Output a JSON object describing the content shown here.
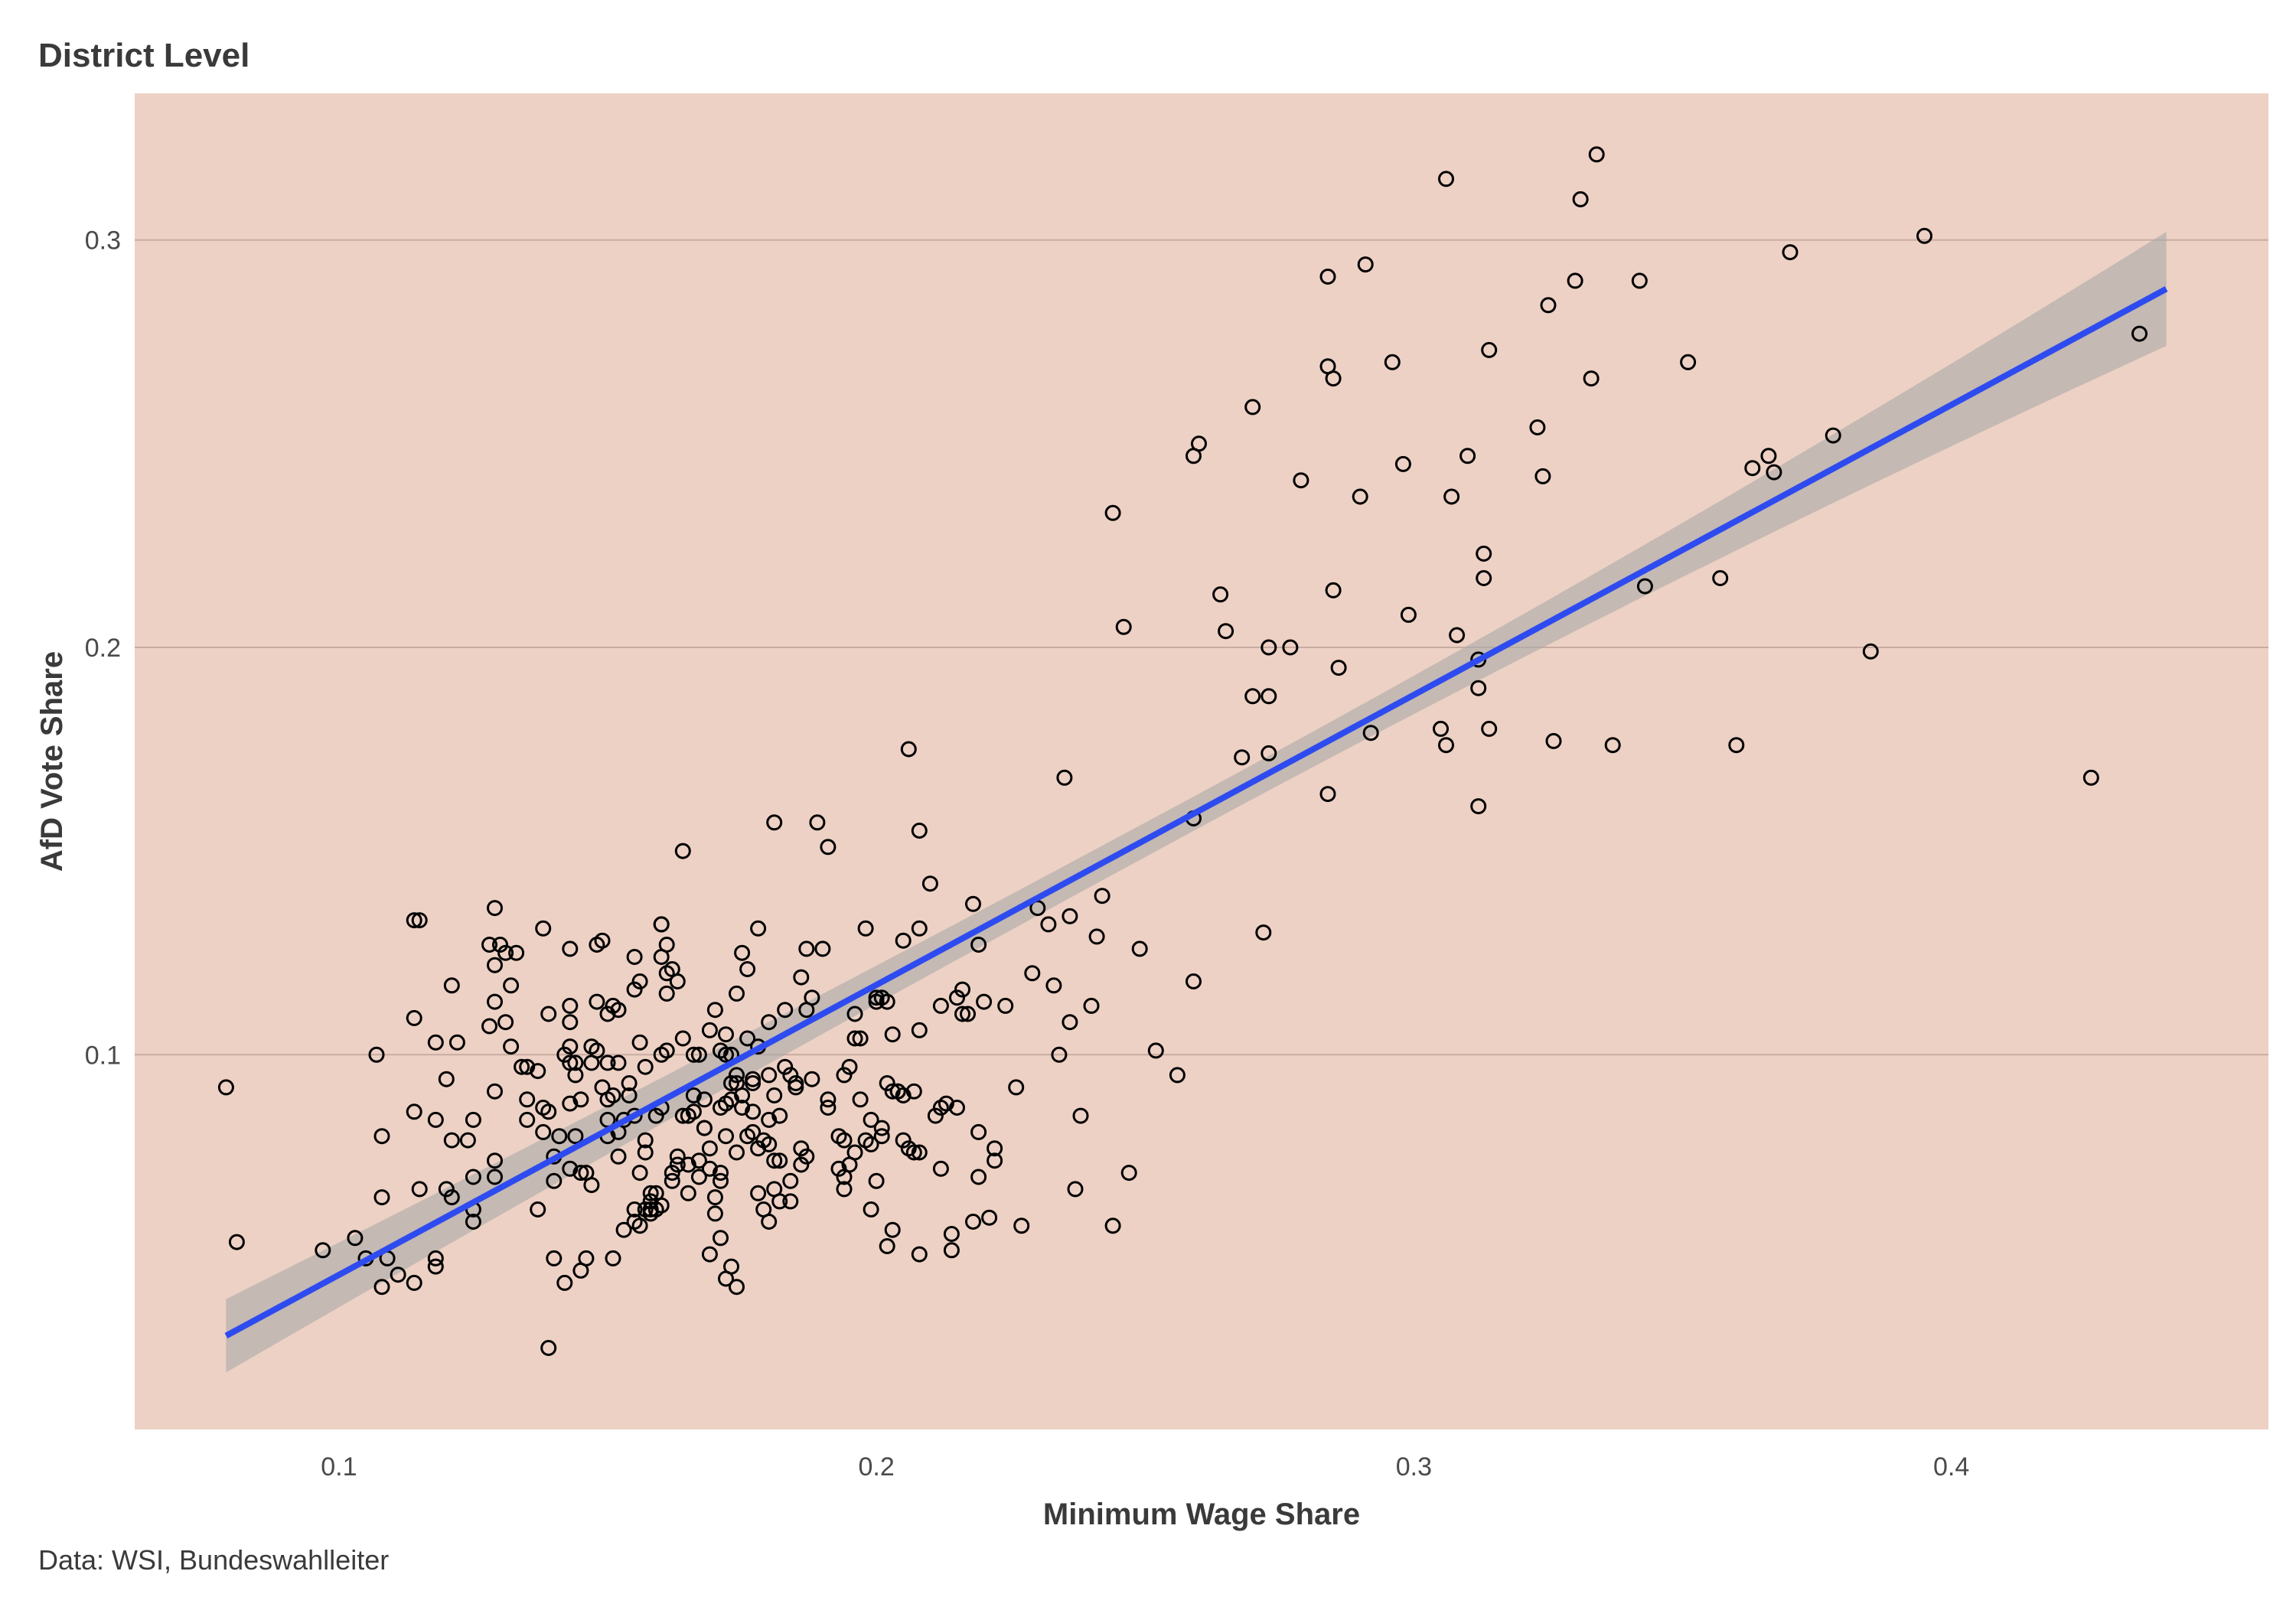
{
  "chart_data": {
    "type": "scatter",
    "title": "District Level",
    "caption": "Data: WSI, Bundeswahlleiter",
    "xlabel": "Minimum Wage Share",
    "ylabel": "AfD Vote Share",
    "xlim": [
      0.062,
      0.459
    ],
    "ylim": [
      0.008,
      0.336
    ],
    "xticks": [
      {
        "v": 0.1,
        "label": "0.1"
      },
      {
        "v": 0.2,
        "label": "0.2"
      },
      {
        "v": 0.3,
        "label": "0.3"
      },
      {
        "v": 0.4,
        "label": "0.4"
      }
    ],
    "yticks": [
      {
        "v": 0.1,
        "label": "0.1"
      },
      {
        "v": 0.2,
        "label": "0.2"
      },
      {
        "v": 0.3,
        "label": "0.3"
      }
    ],
    "grid": "horizontal",
    "panel_color": "#edd1c4",
    "point_color": "#000000",
    "fit": {
      "method": "linear",
      "color": "#2e4bf0",
      "band_color": "#a8a8a8",
      "x_start": 0.079,
      "x_end": 0.44,
      "y_start": 0.031,
      "y_end": 0.288,
      "band_start": 0.009,
      "band_end": 0.014
    },
    "points": [
      [
        0.079,
        0.092
      ],
      [
        0.081,
        0.054
      ],
      [
        0.097,
        0.052
      ],
      [
        0.103,
        0.055
      ],
      [
        0.105,
        0.05
      ],
      [
        0.107,
        0.1
      ],
      [
        0.108,
        0.043
      ],
      [
        0.108,
        0.065
      ],
      [
        0.108,
        0.08
      ],
      [
        0.109,
        0.05
      ],
      [
        0.111,
        0.046
      ],
      [
        0.114,
        0.044
      ],
      [
        0.114,
        0.086
      ],
      [
        0.114,
        0.109
      ],
      [
        0.114,
        0.133
      ],
      [
        0.115,
        0.133
      ],
      [
        0.115,
        0.067
      ],
      [
        0.118,
        0.103
      ],
      [
        0.118,
        0.084
      ],
      [
        0.118,
        0.048
      ],
      [
        0.118,
        0.05
      ],
      [
        0.12,
        0.094
      ],
      [
        0.12,
        0.067
      ],
      [
        0.121,
        0.079
      ],
      [
        0.121,
        0.065
      ],
      [
        0.121,
        0.117
      ],
      [
        0.122,
        0.103
      ],
      [
        0.124,
        0.079
      ],
      [
        0.125,
        0.084
      ],
      [
        0.125,
        0.062
      ],
      [
        0.125,
        0.07
      ],
      [
        0.125,
        0.059
      ],
      [
        0.128,
        0.107
      ],
      [
        0.128,
        0.127
      ],
      [
        0.129,
        0.07
      ],
      [
        0.129,
        0.074
      ],
      [
        0.129,
        0.091
      ],
      [
        0.129,
        0.113
      ],
      [
        0.129,
        0.122
      ],
      [
        0.129,
        0.136
      ],
      [
        0.13,
        0.127
      ],
      [
        0.131,
        0.125
      ],
      [
        0.131,
        0.108
      ],
      [
        0.132,
        0.102
      ],
      [
        0.132,
        0.117
      ],
      [
        0.133,
        0.125
      ],
      [
        0.134,
        0.097
      ],
      [
        0.135,
        0.084
      ],
      [
        0.135,
        0.097
      ],
      [
        0.135,
        0.089
      ],
      [
        0.137,
        0.062
      ],
      [
        0.137,
        0.096
      ],
      [
        0.138,
        0.087
      ],
      [
        0.138,
        0.081
      ],
      [
        0.138,
        0.131
      ],
      [
        0.139,
        0.028
      ],
      [
        0.139,
        0.086
      ],
      [
        0.139,
        0.11
      ],
      [
        0.14,
        0.05
      ],
      [
        0.14,
        0.075
      ],
      [
        0.14,
        0.069
      ],
      [
        0.141,
        0.08
      ],
      [
        0.142,
        0.044
      ],
      [
        0.142,
        0.1
      ],
      [
        0.143,
        0.102
      ],
      [
        0.143,
        0.112
      ],
      [
        0.143,
        0.072
      ],
      [
        0.143,
        0.088
      ],
      [
        0.143,
        0.126
      ],
      [
        0.143,
        0.098
      ],
      [
        0.143,
        0.108
      ],
      [
        0.144,
        0.098
      ],
      [
        0.144,
        0.095
      ],
      [
        0.144,
        0.08
      ],
      [
        0.145,
        0.089
      ],
      [
        0.145,
        0.047
      ],
      [
        0.145,
        0.071
      ],
      [
        0.146,
        0.071
      ],
      [
        0.146,
        0.05
      ],
      [
        0.147,
        0.068
      ],
      [
        0.147,
        0.102
      ],
      [
        0.147,
        0.098
      ],
      [
        0.148,
        0.113
      ],
      [
        0.148,
        0.101
      ],
      [
        0.148,
        0.127
      ],
      [
        0.149,
        0.128
      ],
      [
        0.149,
        0.092
      ],
      [
        0.15,
        0.11
      ],
      [
        0.15,
        0.098
      ],
      [
        0.15,
        0.08
      ],
      [
        0.15,
        0.084
      ],
      [
        0.15,
        0.089
      ],
      [
        0.151,
        0.05
      ],
      [
        0.151,
        0.09
      ],
      [
        0.151,
        0.112
      ],
      [
        0.152,
        0.098
      ],
      [
        0.152,
        0.075
      ],
      [
        0.152,
        0.081
      ],
      [
        0.152,
        0.111
      ],
      [
        0.153,
        0.084
      ],
      [
        0.153,
        0.057
      ],
      [
        0.154,
        0.093
      ],
      [
        0.154,
        0.09
      ],
      [
        0.155,
        0.085
      ],
      [
        0.155,
        0.124
      ],
      [
        0.155,
        0.116
      ],
      [
        0.155,
        0.062
      ],
      [
        0.155,
        0.059
      ],
      [
        0.156,
        0.058
      ],
      [
        0.156,
        0.071
      ],
      [
        0.156,
        0.103
      ],
      [
        0.156,
        0.118
      ],
      [
        0.157,
        0.076
      ],
      [
        0.157,
        0.097
      ],
      [
        0.157,
        0.062
      ],
      [
        0.157,
        0.079
      ],
      [
        0.158,
        0.064
      ],
      [
        0.158,
        0.066
      ],
      [
        0.158,
        0.061
      ],
      [
        0.158,
        0.062
      ],
      [
        0.159,
        0.085
      ],
      [
        0.159,
        0.066
      ],
      [
        0.159,
        0.062
      ],
      [
        0.16,
        0.1
      ],
      [
        0.16,
        0.063
      ],
      [
        0.16,
        0.132
      ],
      [
        0.16,
        0.132
      ],
      [
        0.16,
        0.124
      ],
      [
        0.16,
        0.087
      ],
      [
        0.161,
        0.127
      ],
      [
        0.161,
        0.12
      ],
      [
        0.161,
        0.101
      ],
      [
        0.161,
        0.115
      ],
      [
        0.162,
        0.069
      ],
      [
        0.162,
        0.071
      ],
      [
        0.162,
        0.121
      ],
      [
        0.163,
        0.118
      ],
      [
        0.163,
        0.075
      ],
      [
        0.163,
        0.073
      ],
      [
        0.164,
        0.15
      ],
      [
        0.164,
        0.085
      ],
      [
        0.164,
        0.104
      ],
      [
        0.165,
        0.073
      ],
      [
        0.165,
        0.066
      ],
      [
        0.165,
        0.085
      ],
      [
        0.166,
        0.1
      ],
      [
        0.166,
        0.086
      ],
      [
        0.166,
        0.09
      ],
      [
        0.167,
        0.1
      ],
      [
        0.167,
        0.07
      ],
      [
        0.167,
        0.074
      ],
      [
        0.168,
        0.082
      ],
      [
        0.168,
        0.089
      ],
      [
        0.168,
        0.082
      ],
      [
        0.169,
        0.106
      ],
      [
        0.169,
        0.051
      ],
      [
        0.169,
        0.077
      ],
      [
        0.169,
        0.072
      ],
      [
        0.17,
        0.061
      ],
      [
        0.17,
        0.065
      ],
      [
        0.17,
        0.111
      ],
      [
        0.171,
        0.101
      ],
      [
        0.171,
        0.087
      ],
      [
        0.171,
        0.069
      ],
      [
        0.171,
        0.071
      ],
      [
        0.171,
        0.055
      ],
      [
        0.172,
        0.1
      ],
      [
        0.172,
        0.105
      ],
      [
        0.172,
        0.088
      ],
      [
        0.172,
        0.08
      ],
      [
        0.172,
        0.045
      ],
      [
        0.173,
        0.1
      ],
      [
        0.173,
        0.093
      ],
      [
        0.173,
        0.089
      ],
      [
        0.173,
        0.048
      ],
      [
        0.174,
        0.043
      ],
      [
        0.174,
        0.095
      ],
      [
        0.174,
        0.093
      ],
      [
        0.174,
        0.076
      ],
      [
        0.174,
        0.115
      ],
      [
        0.175,
        0.087
      ],
      [
        0.175,
        0.09
      ],
      [
        0.175,
        0.125
      ],
      [
        0.176,
        0.121
      ],
      [
        0.176,
        0.104
      ],
      [
        0.176,
        0.08
      ],
      [
        0.177,
        0.086
      ],
      [
        0.177,
        0.094
      ],
      [
        0.177,
        0.081
      ],
      [
        0.177,
        0.093
      ],
      [
        0.178,
        0.131
      ],
      [
        0.178,
        0.077
      ],
      [
        0.178,
        0.102
      ],
      [
        0.178,
        0.066
      ],
      [
        0.179,
        0.062
      ],
      [
        0.179,
        0.079
      ],
      [
        0.18,
        0.084
      ],
      [
        0.18,
        0.059
      ],
      [
        0.18,
        0.095
      ],
      [
        0.18,
        0.108
      ],
      [
        0.18,
        0.078
      ],
      [
        0.181,
        0.074
      ],
      [
        0.181,
        0.09
      ],
      [
        0.181,
        0.067
      ],
      [
        0.181,
        0.157
      ],
      [
        0.182,
        0.074
      ],
      [
        0.182,
        0.064
      ],
      [
        0.182,
        0.085
      ],
      [
        0.183,
        0.097
      ],
      [
        0.183,
        0.111
      ],
      [
        0.184,
        0.095
      ],
      [
        0.184,
        0.064
      ],
      [
        0.184,
        0.069
      ],
      [
        0.185,
        0.093
      ],
      [
        0.185,
        0.092
      ],
      [
        0.186,
        0.119
      ],
      [
        0.186,
        0.073
      ],
      [
        0.186,
        0.077
      ],
      [
        0.187,
        0.126
      ],
      [
        0.187,
        0.111
      ],
      [
        0.187,
        0.075
      ],
      [
        0.188,
        0.094
      ],
      [
        0.188,
        0.114
      ],
      [
        0.189,
        0.157
      ],
      [
        0.19,
        0.126
      ],
      [
        0.191,
        0.151
      ],
      [
        0.191,
        0.089
      ],
      [
        0.191,
        0.087
      ],
      [
        0.193,
        0.08
      ],
      [
        0.193,
        0.072
      ],
      [
        0.194,
        0.07
      ],
      [
        0.194,
        0.095
      ],
      [
        0.194,
        0.067
      ],
      [
        0.194,
        0.079
      ],
      [
        0.195,
        0.097
      ],
      [
        0.195,
        0.073
      ],
      [
        0.196,
        0.104
      ],
      [
        0.196,
        0.11
      ],
      [
        0.196,
        0.076
      ],
      [
        0.197,
        0.089
      ],
      [
        0.197,
        0.104
      ],
      [
        0.198,
        0.131
      ],
      [
        0.198,
        0.079
      ],
      [
        0.199,
        0.062
      ],
      [
        0.199,
        0.084
      ],
      [
        0.199,
        0.078
      ],
      [
        0.2,
        0.069
      ],
      [
        0.2,
        0.113
      ],
      [
        0.2,
        0.114
      ],
      [
        0.201,
        0.114
      ],
      [
        0.201,
        0.08
      ],
      [
        0.201,
        0.082
      ],
      [
        0.202,
        0.053
      ],
      [
        0.202,
        0.113
      ],
      [
        0.202,
        0.093
      ],
      [
        0.203,
        0.105
      ],
      [
        0.203,
        0.091
      ],
      [
        0.203,
        0.057
      ],
      [
        0.204,
        0.091
      ],
      [
        0.204,
        0.091
      ],
      [
        0.205,
        0.128
      ],
      [
        0.205,
        0.079
      ],
      [
        0.205,
        0.09
      ],
      [
        0.206,
        0.175
      ],
      [
        0.206,
        0.077
      ],
      [
        0.207,
        0.091
      ],
      [
        0.207,
        0.076
      ],
      [
        0.208,
        0.155
      ],
      [
        0.208,
        0.131
      ],
      [
        0.208,
        0.106
      ],
      [
        0.208,
        0.051
      ],
      [
        0.208,
        0.076
      ],
      [
        0.21,
        0.142
      ],
      [
        0.211,
        0.085
      ],
      [
        0.212,
        0.087
      ],
      [
        0.212,
        0.072
      ],
      [
        0.212,
        0.112
      ],
      [
        0.213,
        0.088
      ],
      [
        0.214,
        0.052
      ],
      [
        0.214,
        0.056
      ],
      [
        0.215,
        0.087
      ],
      [
        0.215,
        0.114
      ],
      [
        0.216,
        0.116
      ],
      [
        0.216,
        0.11
      ],
      [
        0.217,
        0.11
      ],
      [
        0.218,
        0.059
      ],
      [
        0.218,
        0.137
      ],
      [
        0.219,
        0.07
      ],
      [
        0.219,
        0.081
      ],
      [
        0.219,
        0.127
      ],
      [
        0.22,
        0.113
      ],
      [
        0.221,
        0.06
      ],
      [
        0.222,
        0.074
      ],
      [
        0.222,
        0.077
      ],
      [
        0.224,
        0.112
      ],
      [
        0.226,
        0.092
      ],
      [
        0.227,
        0.058
      ],
      [
        0.229,
        0.12
      ],
      [
        0.23,
        0.136
      ],
      [
        0.232,
        0.132
      ],
      [
        0.233,
        0.117
      ],
      [
        0.234,
        0.1
      ],
      [
        0.235,
        0.168
      ],
      [
        0.236,
        0.134
      ],
      [
        0.236,
        0.108
      ],
      [
        0.237,
        0.067
      ],
      [
        0.238,
        0.085
      ],
      [
        0.24,
        0.112
      ],
      [
        0.241,
        0.129
      ],
      [
        0.242,
        0.139
      ],
      [
        0.244,
        0.058
      ],
      [
        0.244,
        0.233
      ],
      [
        0.246,
        0.205
      ],
      [
        0.247,
        0.071
      ],
      [
        0.249,
        0.126
      ],
      [
        0.252,
        0.101
      ],
      [
        0.256,
        0.095
      ],
      [
        0.259,
        0.118
      ],
      [
        0.259,
        0.247
      ],
      [
        0.26,
        0.25
      ],
      [
        0.259,
        0.158
      ],
      [
        0.264,
        0.213
      ],
      [
        0.265,
        0.204
      ],
      [
        0.268,
        0.173
      ],
      [
        0.27,
        0.188
      ],
      [
        0.27,
        0.259
      ],
      [
        0.272,
        0.13
      ],
      [
        0.273,
        0.2
      ],
      [
        0.273,
        0.188
      ],
      [
        0.273,
        0.174
      ],
      [
        0.277,
        0.2
      ],
      [
        0.279,
        0.241
      ],
      [
        0.284,
        0.164
      ],
      [
        0.284,
        0.269
      ],
      [
        0.284,
        0.291
      ],
      [
        0.285,
        0.266
      ],
      [
        0.285,
        0.214
      ],
      [
        0.286,
        0.195
      ],
      [
        0.29,
        0.237
      ],
      [
        0.291,
        0.294
      ],
      [
        0.292,
        0.179
      ],
      [
        0.296,
        0.27
      ],
      [
        0.298,
        0.245
      ],
      [
        0.299,
        0.208
      ],
      [
        0.305,
        0.18
      ],
      [
        0.306,
        0.315
      ],
      [
        0.306,
        0.176
      ],
      [
        0.307,
        0.237
      ],
      [
        0.308,
        0.203
      ],
      [
        0.31,
        0.247
      ],
      [
        0.312,
        0.19
      ],
      [
        0.312,
        0.197
      ],
      [
        0.312,
        0.161
      ],
      [
        0.313,
        0.223
      ],
      [
        0.313,
        0.217
      ],
      [
        0.314,
        0.273
      ],
      [
        0.314,
        0.18
      ],
      [
        0.323,
        0.254
      ],
      [
        0.324,
        0.242
      ],
      [
        0.325,
        0.284
      ],
      [
        0.326,
        0.177
      ],
      [
        0.33,
        0.29
      ],
      [
        0.331,
        0.31
      ],
      [
        0.333,
        0.266
      ],
      [
        0.334,
        0.321
      ],
      [
        0.337,
        0.176
      ],
      [
        0.342,
        0.29
      ],
      [
        0.343,
        0.215
      ],
      [
        0.351,
        0.27
      ],
      [
        0.357,
        0.217
      ],
      [
        0.36,
        0.176
      ],
      [
        0.363,
        0.244
      ],
      [
        0.366,
        0.247
      ],
      [
        0.367,
        0.243
      ],
      [
        0.37,
        0.297
      ],
      [
        0.378,
        0.252
      ],
      [
        0.385,
        0.199
      ],
      [
        0.395,
        0.301
      ],
      [
        0.426,
        0.168
      ],
      [
        0.435,
        0.277
      ]
    ]
  }
}
